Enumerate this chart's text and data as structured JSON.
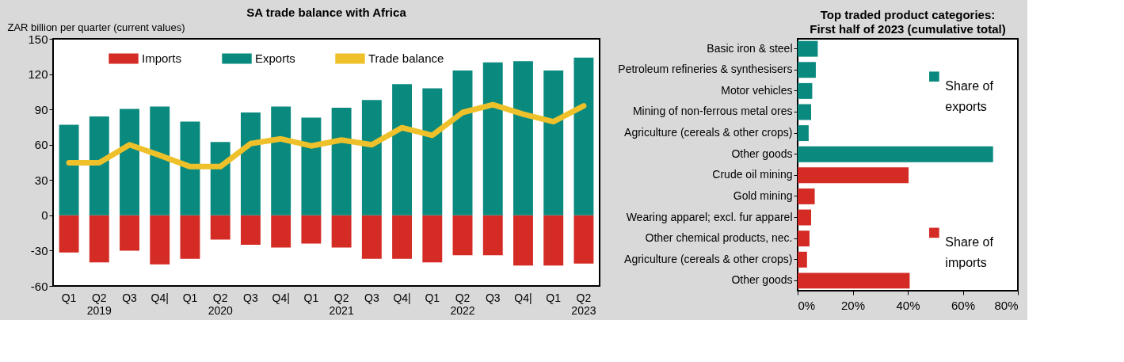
{
  "chart_data": [
    {
      "type": "bar",
      "title": "SA trade balance with Africa",
      "ylabel": "ZAR billion per quarter (current values)",
      "categories": [
        "Q1",
        "Q2\n2019",
        "Q3",
        "Q4|",
        "Q1",
        "Q2\n2020",
        "Q3",
        "Q4|",
        "Q1",
        "Q2\n2021",
        "Q3",
        "Q4|",
        "Q1",
        "Q2\n2022",
        "Q3",
        "Q4|",
        "Q1",
        "Q2\n2023"
      ],
      "series": [
        {
          "name": "Imports",
          "type": "bar",
          "color": "#d42b24",
          "values": [
            -31.6,
            -40,
            -30,
            -41.6,
            -37,
            -20.6,
            -25,
            -27.4,
            -24,
            -27.4,
            -37,
            -37,
            -40,
            -34,
            -34,
            -42.7,
            -42.7,
            -41
          ]
        },
        {
          "name": "Exports",
          "type": "bar",
          "color": "#0a8a7e",
          "values": [
            77,
            84,
            90.5,
            92.5,
            79.6,
            62.4,
            87.4,
            92.5,
            83,
            91.4,
            98,
            111.5,
            108,
            123,
            130,
            131,
            123,
            134
          ]
        },
        {
          "name": "Trade balance",
          "type": "line",
          "color": "#eec12a",
          "values": [
            44.7,
            44.7,
            60,
            51,
            41.4,
            41.4,
            61,
            65,
            59,
            64,
            60,
            74.5,
            68,
            87.4,
            94,
            86,
            79.6,
            93
          ]
        }
      ],
      "ylim": [
        -60,
        150
      ],
      "yticks": [
        -60,
        -30,
        0,
        30,
        60,
        90,
        120,
        150
      ],
      "grid": false,
      "legend": "top",
      "stacked": true
    },
    {
      "type": "bar",
      "orientation": "horizontal",
      "title": "Top traded product categories:",
      "subtitle": "First half of 2023 (cumulative total)",
      "categories": [
        "Basic iron & steel",
        "Petroleum refineries & synthesisers",
        "Motor vehicles",
        "Mining of non-ferrous metal ores",
        "Agriculture (cereals & other crops)",
        "Other goods",
        "Crude oil mining",
        "Gold  mining",
        "Wearing apparel; excl. fur apparel",
        "Other chemical products, nec.",
        "Agriculture (cereals & other crops)",
        "Other goods"
      ],
      "series": [
        {
          "name": "Share of exports",
          "color": "#0a8a7e",
          "values": [
            7.3,
            6.6,
            5.3,
            4.9,
            4.0,
            71,
            null,
            null,
            null,
            null,
            null,
            null
          ]
        },
        {
          "name": "Share of imports",
          "color": "#d42b24",
          "values": [
            null,
            null,
            null,
            null,
            null,
            null,
            40.3,
            6.2,
            4.9,
            4.3,
            3.4,
            40.7
          ]
        }
      ],
      "xlim": [
        0,
        80
      ],
      "xticks": [
        {
          "value": 0,
          "label": "0%"
        },
        {
          "value": 20,
          "label": "20%"
        },
        {
          "value": 40,
          "label": "40%"
        },
        {
          "value": 60,
          "label": "60%"
        },
        {
          "value": 80,
          "label": "80%"
        }
      ],
      "grid": false,
      "legend": "right"
    }
  ]
}
